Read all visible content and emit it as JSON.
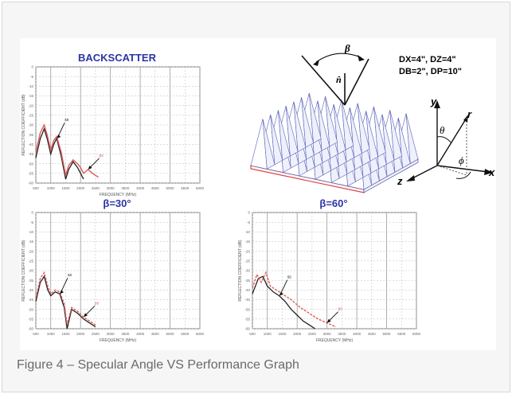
{
  "caption": "Figure 4 – Specular Angle VS Performance Graph",
  "colors": {
    "title": "#2b35a3",
    "ss_curve": "#222222",
    "ps_curve": "#e05a5a",
    "absorber_blue": "#5a62b8",
    "absorber_base_red": "#e04545",
    "grid": "#b9b9b9"
  },
  "chart_data": [
    {
      "type": "line",
      "title": "BACKSCATTER",
      "xlabel": "FREQUENCY (MHz)",
      "ylabel": "REFLECTION COEFFICIENT (dB)",
      "xlim": [
        500,
        6000
      ],
      "ylim": [
        -60,
        0
      ],
      "xticks": [
        "500",
        "1000",
        "1500",
        "2000",
        "2500",
        "3000",
        "3500",
        "4000",
        "4500",
        "5000",
        "5500",
        "6000"
      ],
      "yticks": [
        "0",
        "-5",
        "-10",
        "-15",
        "-20",
        "-25",
        "-30",
        "-35",
        "-40",
        "-45",
        "-50",
        "-55",
        "-60"
      ],
      "series": [
        {
          "name": "ss",
          "x": [
            500,
            650,
            780,
            880,
            1000,
            1100,
            1200,
            1350,
            1500,
            1600,
            1750,
            1900,
            2000,
            2100
          ],
          "y": [
            -47,
            -37,
            -32,
            -37,
            -45,
            -40,
            -37,
            -46,
            -58,
            -53,
            -49,
            -52,
            -55,
            -58
          ]
        },
        {
          "name": "ps",
          "x": [
            500,
            650,
            780,
            880,
            1000,
            1100,
            1200,
            1350,
            1500,
            1600,
            1750,
            1900,
            2000,
            2100,
            2250,
            2400,
            2600
          ],
          "y": [
            -44,
            -34,
            -30,
            -35,
            -43,
            -38,
            -36,
            -44,
            -56,
            -51,
            -48,
            -50,
            -52,
            -55,
            -53,
            -55,
            -57
          ]
        }
      ],
      "labels": [
        "ss",
        "ps"
      ]
    },
    {
      "type": "line",
      "title": "β=30°",
      "xlabel": "FREQUENCY (MHz)",
      "ylabel": "REFLECTION COEFFICIENT (dB)",
      "xlim": [
        500,
        6000
      ],
      "ylim": [
        -60,
        0
      ],
      "xticks": [
        "500",
        "1000",
        "1500",
        "2000",
        "2500",
        "3000",
        "3500",
        "4000",
        "4500",
        "5000",
        "5500",
        "6000"
      ],
      "yticks": [
        "0",
        "-5",
        "-10",
        "-15",
        "-20",
        "-25",
        "-30",
        "-35",
        "-40",
        "-45",
        "-50",
        "-55",
        "-60"
      ],
      "series": [
        {
          "name": "ss",
          "x": [
            500,
            650,
            780,
            900,
            1000,
            1150,
            1300,
            1450,
            1550,
            1700,
            1900,
            2100,
            2300,
            2500
          ],
          "y": [
            -46,
            -36,
            -33,
            -40,
            -43,
            -41,
            -42,
            -49,
            -60,
            -50,
            -52,
            -55,
            -57,
            -59
          ]
        },
        {
          "name": "ps",
          "x": [
            500,
            650,
            780,
            900,
            1000,
            1150,
            1300,
            1450,
            1550,
            1700,
            1900,
            2100,
            2300,
            2500
          ],
          "y": [
            -44,
            -34,
            -31,
            -38,
            -42,
            -40,
            -41,
            -47,
            -58,
            -49,
            -51,
            -54,
            -56,
            -58
          ]
        }
      ],
      "labels": [
        "ss",
        "ps"
      ]
    },
    {
      "type": "line",
      "title": "β=60°",
      "xlabel": "FREQUENCY (MHz)",
      "ylabel": "REFLECTION COEFFICIENT (dB)",
      "xlim": [
        500,
        6000
      ],
      "ylim": [
        -60,
        0
      ],
      "xticks": [
        "500",
        "1000",
        "1500",
        "2000",
        "2500",
        "3000",
        "3500",
        "4000",
        "4500",
        "5000",
        "5500",
        "6000"
      ],
      "yticks": [
        "0",
        "-5",
        "-10",
        "-15",
        "-20",
        "-25",
        "-30",
        "-35",
        "-40",
        "-45",
        "-50",
        "-55",
        "-60"
      ],
      "series": [
        {
          "name": "ss",
          "x": [
            500,
            700,
            850,
            1000,
            1200,
            1400,
            1600,
            1800,
            2000,
            2200,
            2400,
            2600
          ],
          "y": [
            -42,
            -34,
            -33,
            -38,
            -41,
            -43,
            -46,
            -50,
            -53,
            -56,
            -58,
            -60
          ]
        },
        {
          "name": "ps",
          "x": [
            500,
            650,
            800,
            950,
            1100,
            1300,
            1500,
            1800,
            2100,
            2400,
            2700,
            3000,
            3300
          ],
          "y": [
            -39,
            -32,
            -36,
            -31,
            -38,
            -40,
            -42,
            -45,
            -49,
            -52,
            -55,
            -57,
            -59
          ]
        }
      ],
      "labels": [
        "ss",
        "ps"
      ]
    }
  ],
  "diagram": {
    "dims_line1": "DX=4\", DZ=4\"",
    "dims_line2": "DB=2\", DP=10\"",
    "beta_symbol": "β",
    "normal_symbol": "n̂",
    "axis_y": "y",
    "axis_z": "z",
    "axis_x": "x",
    "theta_symbol": "θ",
    "phi_symbol": "ϕ",
    "r_symbol": "r"
  }
}
